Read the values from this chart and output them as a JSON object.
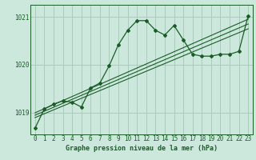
{
  "title": "Graphe pression niveau de la mer (hPa)",
  "background_color": "#cce8dc",
  "grid_color": "#aaccbb",
  "line_color": "#1a5c28",
  "xlim": [
    -0.5,
    23.5
  ],
  "ylim": [
    1018.55,
    1021.25
  ],
  "yticks": [
    1019,
    1020,
    1021
  ],
  "xticks": [
    0,
    1,
    2,
    3,
    4,
    5,
    6,
    7,
    8,
    9,
    10,
    11,
    12,
    13,
    14,
    15,
    16,
    17,
    18,
    19,
    20,
    21,
    22,
    23
  ],
  "main_series_x": [
    0,
    1,
    2,
    3,
    4,
    5,
    6,
    7,
    8,
    9,
    10,
    11,
    12,
    13,
    14,
    15,
    16,
    17,
    18,
    19,
    20,
    21,
    22,
    23
  ],
  "main_series_y": [
    1018.68,
    1019.08,
    1019.18,
    1019.25,
    1019.22,
    1019.12,
    1019.52,
    1019.62,
    1019.98,
    1020.42,
    1020.72,
    1020.92,
    1020.92,
    1020.72,
    1020.62,
    1020.82,
    1020.52,
    1020.22,
    1020.18,
    1020.18,
    1020.22,
    1020.22,
    1020.28,
    1021.02
  ],
  "trend1_x": [
    0,
    23
  ],
  "trend1_y": [
    1018.95,
    1020.85
  ],
  "trend2_x": [
    0,
    23
  ],
  "trend2_y": [
    1019.0,
    1020.95
  ],
  "trend3_x": [
    0,
    23
  ],
  "trend3_y": [
    1018.9,
    1020.75
  ]
}
